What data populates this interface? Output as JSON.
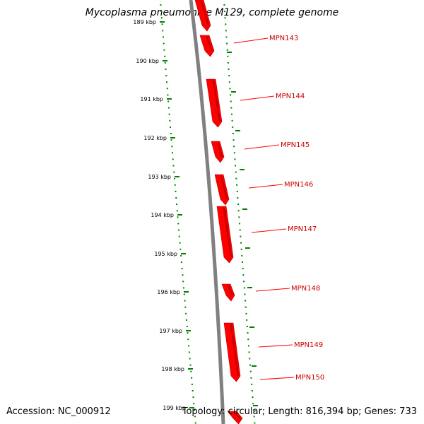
{
  "title": "Mycoplasma pneumoniae M129, complete genome",
  "accession": "Accession: NC_000912",
  "summary": "Topology: circular; Length: 816,394 bp; Genes: 733",
  "colors": {
    "gene": "#ff0000",
    "backbone": "#808080",
    "ticks": "#008000"
  },
  "kbp_labels": [
    "189 kbp",
    "190 kbp",
    "191 kbp",
    "192 kbp",
    "193 kbp",
    "194 kbp",
    "195 kbp",
    "196 kbp",
    "197 kbp",
    "198 kbp",
    "199 kbp"
  ],
  "genes": [
    {
      "name": "MPN143"
    },
    {
      "name": "MPN144"
    },
    {
      "name": "MPN145"
    },
    {
      "name": "MPN146"
    },
    {
      "name": "MPN147"
    },
    {
      "name": "MPN148"
    },
    {
      "name": "MPN149"
    },
    {
      "name": "MPN150"
    }
  ]
}
